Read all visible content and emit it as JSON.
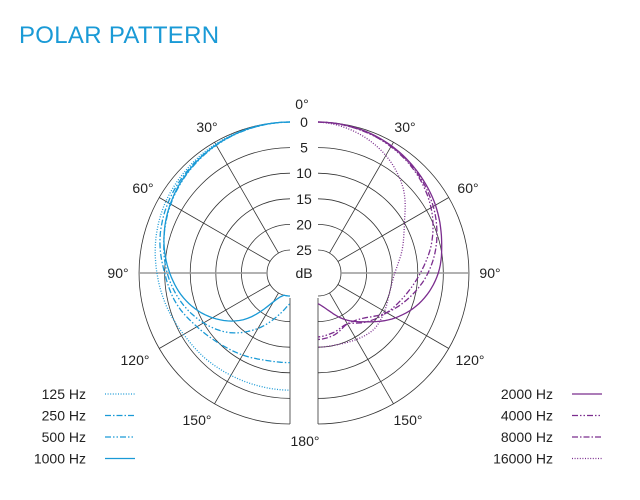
{
  "title": "POLAR PATTERN",
  "chart_data": {
    "type": "polar",
    "title": "POLAR PATTERN",
    "angle_labels_left": [
      "30°",
      "60°",
      "90°",
      "120°",
      "150°"
    ],
    "angle_labels_right": [
      "30°",
      "60°",
      "90°",
      "120°",
      "150°"
    ],
    "top_angle_label": "0°",
    "bottom_angle_label": "180°",
    "radial_tick_labels": [
      "0",
      "5",
      "10",
      "15",
      "20",
      "25"
    ],
    "radial_unit": "dB",
    "radial_range_db": [
      0,
      25
    ],
    "angles_deg": [
      0,
      15,
      30,
      45,
      60,
      75,
      90,
      105,
      120,
      135,
      150,
      165,
      180
    ],
    "left_series": [
      {
        "name": "125 Hz",
        "style": "dotted",
        "values": [
          0,
          0.1,
          0.4,
          0.9,
          1.5,
          2.4,
          3.5,
          4.5,
          5.5,
          6,
          6.4,
          6.6,
          6.6
        ]
      },
      {
        "name": "250 Hz",
        "style": "dash-dot",
        "values": [
          0,
          0.2,
          0.6,
          1.2,
          2,
          3.2,
          5,
          6.5,
          8.5,
          10,
          11,
          11.8,
          12
        ]
      },
      {
        "name": "500 Hz",
        "style": "dash-dot-dot",
        "values": [
          0,
          0.2,
          0.7,
          1.5,
          2.6,
          4,
          5.5,
          7.5,
          10,
          13,
          17,
          21,
          23.5
        ]
      },
      {
        "name": "1000 Hz",
        "style": "solid",
        "values": [
          0,
          0.15,
          0.6,
          1.4,
          2.5,
          4,
          6,
          8.5,
          12,
          16.6,
          23,
          25,
          25
        ]
      }
    ],
    "right_series": [
      {
        "name": "2000 Hz",
        "style": "solid",
        "values": [
          0,
          0.2,
          0.8,
          1.8,
          3,
          4.5,
          6,
          8.5,
          12,
          16,
          19,
          22,
          23.5
        ]
      },
      {
        "name": "4000 Hz",
        "style": "dash-dot-dot",
        "values": [
          0,
          0.3,
          1,
          2.2,
          4,
          6.5,
          9.5,
          12,
          14,
          16,
          18,
          17.5,
          17
        ]
      },
      {
        "name": "8000 Hz",
        "style": "dash-dot",
        "values": [
          0,
          0.3,
          0.9,
          2,
          3.5,
          5.5,
          8,
          11,
          14,
          17,
          18,
          17,
          16.5
        ]
      },
      {
        "name": "16000 Hz",
        "style": "dotted",
        "values": [
          0,
          1,
          3,
          6,
          10,
          12.5,
          14.5,
          15,
          14.5,
          14,
          14.5,
          15,
          15
        ]
      }
    ],
    "colors": {
      "left": "#1a9ad6",
      "right": "#7b2d8e",
      "grid": "#333333"
    },
    "grid": true,
    "legend_placement": "bottom-left and bottom-right"
  }
}
